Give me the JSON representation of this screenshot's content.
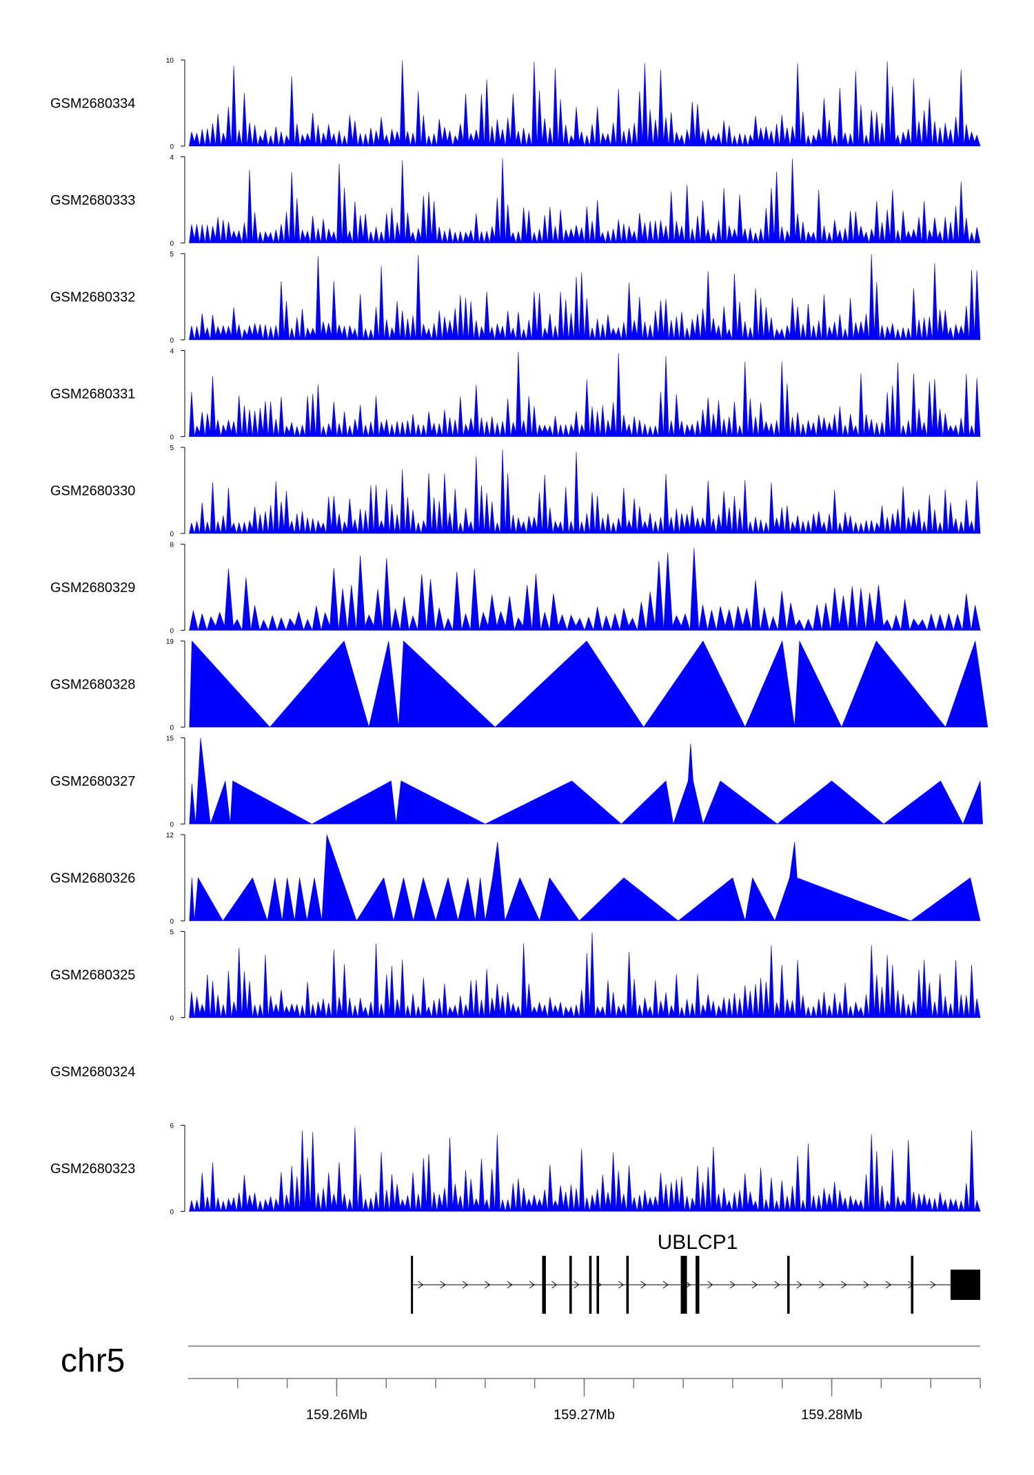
{
  "chart_data": {
    "type": "area",
    "chromosome": "chr5",
    "x_range": [
      159254000,
      159286000
    ],
    "x_ticks": [
      {
        "pos": 159260000,
        "label": "159.26Mb"
      },
      {
        "pos": 159270000,
        "label": "159.27Mb"
      },
      {
        "pos": 159280000,
        "label": "159.28Mb"
      }
    ],
    "color": "#0000ff",
    "tracks": [
      {
        "name": "GSM2680334",
        "ymax": 10,
        "ymin_label": "0",
        "ymax_label": "10",
        "seed": 11,
        "density": 150,
        "empty": false
      },
      {
        "name": "GSM2680333",
        "ymax": 4,
        "ymin_label": "0",
        "ymax_label": "4",
        "seed": 23,
        "density": 150,
        "empty": false
      },
      {
        "name": "GSM2680332",
        "ymax": 5,
        "ymin_label": "0",
        "ymax_label": "5",
        "seed": 37,
        "density": 150,
        "empty": false
      },
      {
        "name": "GSM2680331",
        "ymax": 4,
        "ymin_label": "0",
        "ymax_label": "4",
        "seed": 41,
        "density": 150,
        "empty": false
      },
      {
        "name": "GSM2680330",
        "ymax": 5,
        "ymin_label": "0",
        "ymax_label": "5",
        "seed": 53,
        "density": 150,
        "empty": false
      },
      {
        "name": "GSM2680329",
        "ymax": 8,
        "ymin_label": "0",
        "ymax_label": "8",
        "seed": 67,
        "density": 90,
        "empty": false
      },
      {
        "name": "GSM2680328",
        "ymax": 19,
        "ymin_label": "0",
        "ymax_label": "19",
        "empty": false,
        "points": [
          [
            159254050,
            0
          ],
          [
            159254150,
            19
          ],
          [
            159257300,
            0
          ],
          [
            159260300,
            19
          ],
          [
            159261300,
            0
          ],
          [
            159262100,
            19
          ],
          [
            159262500,
            0
          ],
          [
            159262700,
            19
          ],
          [
            159266400,
            0
          ],
          [
            159270100,
            19
          ],
          [
            159272400,
            0
          ],
          [
            159274800,
            19
          ],
          [
            159276500,
            0
          ],
          [
            159278000,
            19
          ],
          [
            159278500,
            0
          ],
          [
            159278700,
            19
          ],
          [
            159280400,
            0
          ],
          [
            159281800,
            19
          ],
          [
            159284600,
            0
          ],
          [
            159285800,
            19
          ],
          [
            159286300,
            0
          ]
        ]
      },
      {
        "name": "GSM2680327",
        "ymax": 15,
        "ymin_label": "0",
        "ymax_label": "15",
        "empty": false,
        "points": [
          [
            159254050,
            0
          ],
          [
            159254150,
            7
          ],
          [
            159254300,
            0
          ],
          [
            159254500,
            15
          ],
          [
            159254900,
            0
          ],
          [
            159255500,
            7.5
          ],
          [
            159255700,
            0
          ],
          [
            159255800,
            7.5
          ],
          [
            159259000,
            0
          ],
          [
            159262200,
            7.5
          ],
          [
            159262400,
            0
          ],
          [
            159262600,
            7.5
          ],
          [
            159266000,
            0
          ],
          [
            159269500,
            7.5
          ],
          [
            159271500,
            0
          ],
          [
            159273300,
            7.5
          ],
          [
            159273600,
            0
          ],
          [
            159274200,
            7.5
          ],
          [
            159274300,
            14
          ],
          [
            159274400,
            7.5
          ],
          [
            159274800,
            0
          ],
          [
            159275500,
            7.5
          ],
          [
            159277800,
            0
          ],
          [
            159280000,
            7.5
          ],
          [
            159282100,
            0
          ],
          [
            159284400,
            7.5
          ],
          [
            159285300,
            0
          ],
          [
            159286000,
            7.5
          ],
          [
            159286100,
            0
          ]
        ]
      },
      {
        "name": "GSM2680326",
        "ymax": 12,
        "ymin_label": "0",
        "ymax_label": "12",
        "empty": false,
        "points": [
          [
            159254050,
            0
          ],
          [
            159254150,
            6
          ],
          [
            159254250,
            0
          ],
          [
            159254400,
            6
          ],
          [
            159255400,
            0
          ],
          [
            159256600,
            6
          ],
          [
            159257200,
            0
          ],
          [
            159257500,
            6
          ],
          [
            159257800,
            0
          ],
          [
            159258000,
            6
          ],
          [
            159258300,
            0
          ],
          [
            159258500,
            6
          ],
          [
            159258800,
            0
          ],
          [
            159259100,
            6
          ],
          [
            159259400,
            0
          ],
          [
            159259600,
            12
          ],
          [
            159260800,
            0
          ],
          [
            159261900,
            6
          ],
          [
            159262300,
            0
          ],
          [
            159262700,
            6
          ],
          [
            159263100,
            0
          ],
          [
            159263500,
            6
          ],
          [
            159264000,
            0
          ],
          [
            159264500,
            6
          ],
          [
            159264900,
            0
          ],
          [
            159265300,
            6
          ],
          [
            159265600,
            0
          ],
          [
            159265800,
            6
          ],
          [
            159266000,
            0
          ],
          [
            159266300,
            6
          ],
          [
            159266500,
            11
          ],
          [
            159266800,
            0
          ],
          [
            159267400,
            6
          ],
          [
            159268200,
            0
          ],
          [
            159268600,
            6
          ],
          [
            159269800,
            0
          ],
          [
            159271600,
            6
          ],
          [
            159273800,
            0
          ],
          [
            159276000,
            6
          ],
          [
            159276500,
            0
          ],
          [
            159276800,
            6
          ],
          [
            159277700,
            0
          ],
          [
            159278300,
            6
          ],
          [
            159278500,
            11
          ],
          [
            159278600,
            6
          ],
          [
            159283200,
            0
          ],
          [
            159285600,
            6
          ],
          [
            159286000,
            0
          ]
        ]
      },
      {
        "name": "GSM2680325",
        "ymax": 5,
        "ymin_label": "0",
        "ymax_label": "5",
        "seed": 79,
        "density": 150,
        "empty": false
      },
      {
        "name": "GSM2680324",
        "ymax": 0,
        "ymin_label": "",
        "ymax_label": "",
        "empty": true
      },
      {
        "name": "GSM2680323",
        "ymax": 6,
        "ymin_label": "0",
        "ymax_label": "6",
        "seed": 97,
        "density": 150,
        "empty": false
      }
    ],
    "gene": {
      "name": "UBLCP1",
      "strand": "+",
      "start": 159263000,
      "end": 159286000,
      "exons": [
        [
          159263000,
          159263060
        ],
        [
          159268300,
          159268450
        ],
        [
          159269400,
          159269500
        ],
        [
          159270200,
          159270300
        ],
        [
          159270500,
          159270600
        ],
        [
          159271700,
          159271800
        ],
        [
          159273900,
          159274150
        ],
        [
          159274500,
          159274650
        ],
        [
          159278200,
          159278300
        ],
        [
          159283200,
          159283300
        ],
        [
          159284800,
          159286000
        ]
      ]
    }
  }
}
